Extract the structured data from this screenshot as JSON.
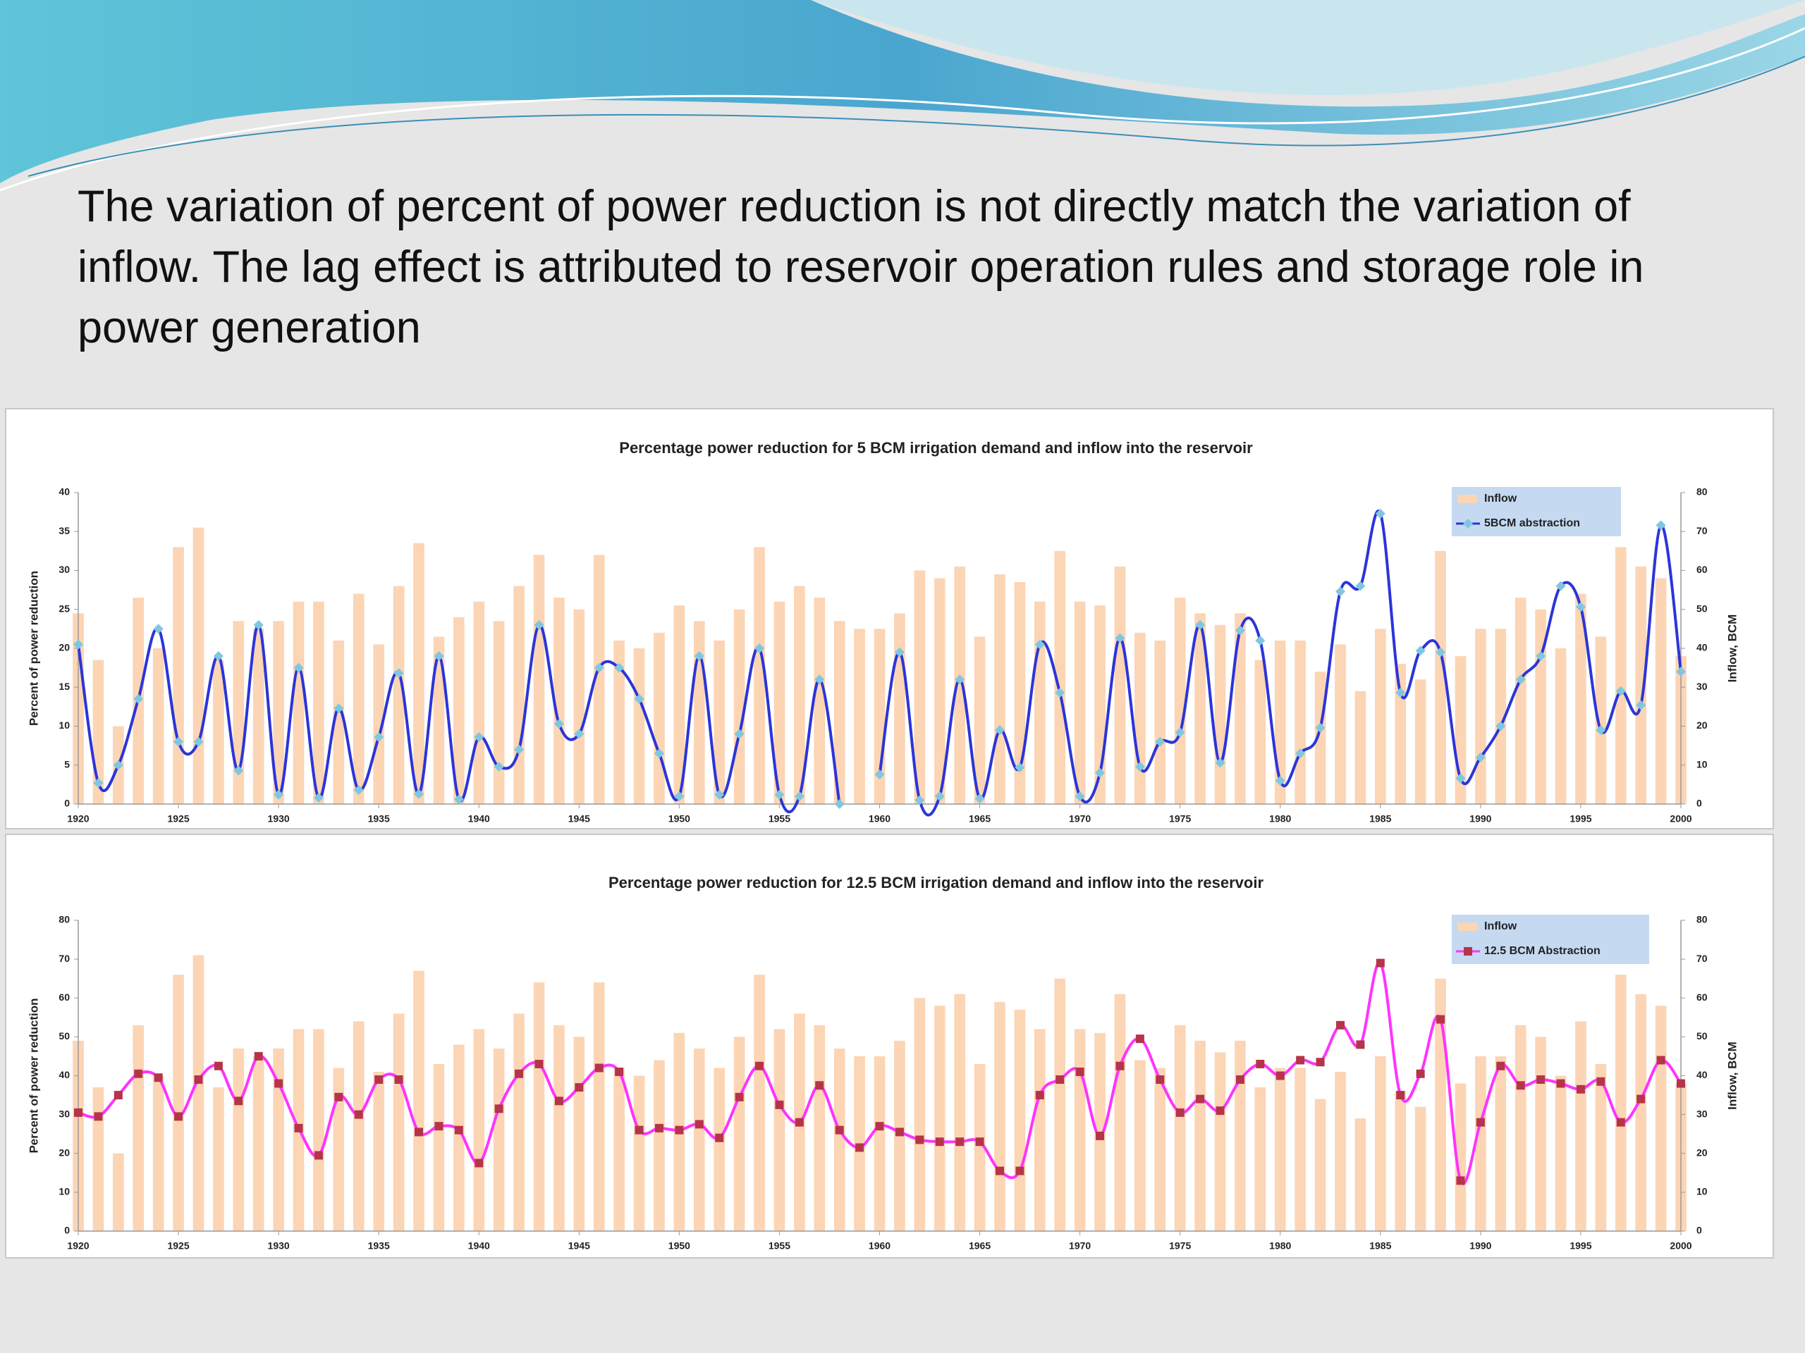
{
  "title": "The variation of percent of power reduction is not directly match the variation of inflow. The lag effect is attributed to reservoir operation rules and storage role in power generation",
  "chart_data": [
    {
      "type": "combo",
      "title": "Percentage power reduction for 5 BCM irrigation demand and inflow into the reservoir",
      "ylabel": "Percent of power reduction",
      "y2label": "Inflow, BCM",
      "legend": "upper right",
      "x": [
        1920,
        1921,
        1922,
        1923,
        1924,
        1925,
        1926,
        1927,
        1928,
        1929,
        1930,
        1931,
        1932,
        1933,
        1934,
        1935,
        1936,
        1937,
        1938,
        1939,
        1940,
        1941,
        1942,
        1943,
        1944,
        1945,
        1946,
        1947,
        1948,
        1949,
        1950,
        1951,
        1952,
        1953,
        1954,
        1955,
        1956,
        1957,
        1958,
        1959,
        1960,
        1961,
        1962,
        1963,
        1964,
        1965,
        1966,
        1967,
        1968,
        1969,
        1970,
        1971,
        1972,
        1973,
        1974,
        1975,
        1976,
        1977,
        1978,
        1979,
        1980,
        1981,
        1982,
        1983,
        1984,
        1985,
        1986,
        1987,
        1988,
        1989,
        1990,
        1991,
        1992,
        1993,
        1994,
        1995,
        1996,
        1997,
        1998,
        1999,
        2000
      ],
      "xlim": [
        1920,
        2000
      ],
      "xticks": [
        1920,
        1925,
        1930,
        1935,
        1940,
        1945,
        1950,
        1955,
        1960,
        1965,
        1970,
        1975,
        1980,
        1985,
        1990,
        1995,
        2000
      ],
      "ylim": [
        0,
        40
      ],
      "yticks": [
        0,
        5,
        10,
        15,
        20,
        25,
        30,
        35,
        40
      ],
      "y2lim": [
        0,
        80
      ],
      "y2ticks": [
        0,
        10,
        20,
        30,
        40,
        50,
        60,
        70,
        80
      ],
      "series": [
        {
          "name": "Inflow",
          "kind": "bar",
          "axis": "y2",
          "color": "#fcd5b5",
          "values": [
            49,
            37,
            20,
            53,
            40,
            66,
            71,
            37,
            47,
            45,
            47,
            52,
            52,
            42,
            54,
            41,
            56,
            67,
            43,
            48,
            52,
            47,
            56,
            64,
            53,
            50,
            64,
            42,
            40,
            44,
            51,
            47,
            42,
            50,
            66,
            52,
            56,
            53,
            47,
            45,
            45,
            49,
            60,
            58,
            61,
            43,
            59,
            57,
            52,
            65,
            52,
            51,
            61,
            44,
            42,
            53,
            49,
            46,
            49,
            37,
            42,
            42,
            34,
            41,
            29,
            45,
            36,
            32,
            65,
            38,
            45,
            45,
            53,
            50,
            40,
            54,
            43,
            66,
            61,
            58,
            38
          ]
        },
        {
          "name": "5BCM abstraction",
          "kind": "line",
          "color": "#2b35d8",
          "marker": "diamond",
          "marker_color": "#7fc7e0",
          "values": [
            20.5,
            2.7,
            5,
            13.5,
            22.5,
            8,
            8,
            19,
            4.3,
            23,
            1.2,
            17.5,
            0.8,
            12.3,
            1.8,
            8.6,
            16.8,
            1.3,
            19,
            0.6,
            8.6,
            4.8,
            7,
            23,
            10.3,
            9,
            17.5,
            17.5,
            13.5,
            6.5,
            1,
            19,
            1.2,
            9,
            20,
            1.2,
            1,
            16,
            0,
            null,
            3.8,
            19.5,
            0.5,
            1,
            16,
            0.7,
            9.5,
            4.7,
            20.5,
            14.3,
            1,
            4,
            21.3,
            4.8,
            8,
            9.2,
            23,
            5.3,
            22.3,
            21,
            3,
            6.5,
            9.8,
            27.3,
            28,
            37.3,
            14.3,
            19.7,
            19.5,
            3.3,
            6,
            10,
            16,
            19,
            28,
            25.3,
            9.5,
            14.5,
            12.7,
            35.8,
            17
          ]
        }
      ]
    },
    {
      "type": "combo",
      "title": "Percentage power reduction for 12.5 BCM irrigation demand and inflow into the reservoir",
      "ylabel": "Percent of power reduction",
      "y2label": "Inflow, BCM",
      "legend": "upper right",
      "x": [
        1920,
        1921,
        1922,
        1923,
        1924,
        1925,
        1926,
        1927,
        1928,
        1929,
        1930,
        1931,
        1932,
        1933,
        1934,
        1935,
        1936,
        1937,
        1938,
        1939,
        1940,
        1941,
        1942,
        1943,
        1944,
        1945,
        1946,
        1947,
        1948,
        1949,
        1950,
        1951,
        1952,
        1953,
        1954,
        1955,
        1956,
        1957,
        1958,
        1959,
        1960,
        1961,
        1962,
        1963,
        1964,
        1965,
        1966,
        1967,
        1968,
        1969,
        1970,
        1971,
        1972,
        1973,
        1974,
        1975,
        1976,
        1977,
        1978,
        1979,
        1980,
        1981,
        1982,
        1983,
        1984,
        1985,
        1986,
        1987,
        1988,
        1989,
        1990,
        1991,
        1992,
        1993,
        1994,
        1995,
        1996,
        1997,
        1998,
        1999,
        2000
      ],
      "xlim": [
        1920,
        2000
      ],
      "xticks": [
        1920,
        1925,
        1930,
        1935,
        1940,
        1945,
        1950,
        1955,
        1960,
        1965,
        1970,
        1975,
        1980,
        1985,
        1990,
        1995,
        2000
      ],
      "ylim": [
        0,
        80
      ],
      "yticks": [
        0,
        10,
        20,
        30,
        40,
        50,
        60,
        70,
        80
      ],
      "y2lim": [
        0,
        80
      ],
      "y2ticks": [
        0,
        10,
        20,
        30,
        40,
        50,
        60,
        70,
        80
      ],
      "series": [
        {
          "name": "Inflow",
          "kind": "bar",
          "axis": "y2",
          "color": "#fcd5b5",
          "values": [
            49,
            37,
            20,
            53,
            40,
            66,
            71,
            37,
            47,
            45,
            47,
            52,
            52,
            42,
            54,
            41,
            56,
            67,
            43,
            48,
            52,
            47,
            56,
            64,
            53,
            50,
            64,
            42,
            40,
            44,
            51,
            47,
            42,
            50,
            66,
            52,
            56,
            53,
            47,
            45,
            45,
            49,
            60,
            58,
            61,
            43,
            59,
            57,
            52,
            65,
            52,
            51,
            61,
            44,
            42,
            53,
            49,
            46,
            49,
            37,
            42,
            42,
            34,
            41,
            29,
            45,
            36,
            32,
            65,
            38,
            45,
            45,
            53,
            50,
            40,
            54,
            43,
            66,
            61,
            58,
            38
          ]
        },
        {
          "name": "12.5 BCM Abstraction",
          "kind": "line",
          "color": "#ff33ff",
          "marker": "square",
          "marker_color": "#b5344a",
          "values": [
            30.5,
            29.5,
            35,
            40.5,
            39.5,
            29.5,
            39,
            42.5,
            33.5,
            45,
            38,
            26.5,
            19.5,
            34.5,
            30,
            39,
            39,
            25.5,
            27,
            26,
            17.5,
            31.5,
            40.5,
            43,
            33.5,
            37,
            42,
            41,
            26,
            26.5,
            26,
            27.5,
            24,
            34.5,
            42.5,
            32.5,
            28,
            37.5,
            26,
            21.5,
            27,
            25.5,
            23.5,
            23,
            23,
            23,
            15.5,
            15.5,
            35,
            39,
            41,
            24.5,
            42.5,
            49.5,
            39,
            30.5,
            34,
            31,
            39,
            43,
            40,
            44,
            43.5,
            53,
            48,
            69,
            35,
            40.5,
            54.5,
            13,
            28,
            42.5,
            37.5,
            39,
            38,
            36.5,
            38.5,
            28,
            34,
            44,
            38
          ]
        }
      ]
    }
  ]
}
